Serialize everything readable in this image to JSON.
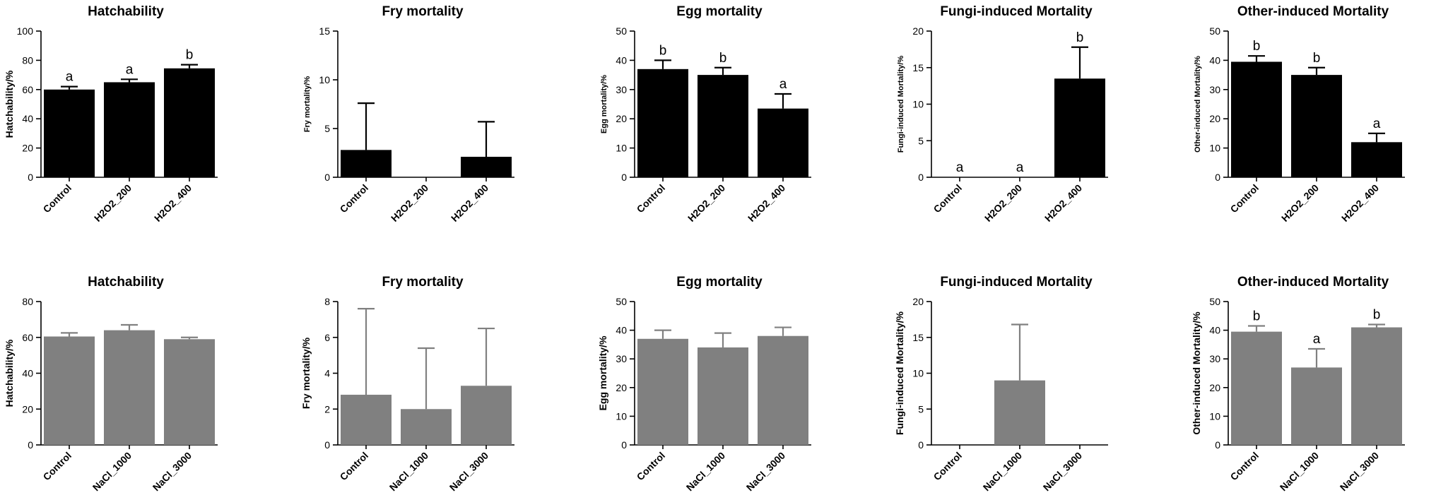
{
  "colors": {
    "row1_bar": "#000000",
    "row2_bar": "#808080",
    "axis": "#000000"
  },
  "chart_data": [
    {
      "type": "bar",
      "title": "Hatchability",
      "ylabel": "Hatchability/%",
      "ylim": [
        0,
        100
      ],
      "yticks": [
        0,
        20,
        40,
        60,
        80,
        100
      ],
      "categories": [
        "Control",
        "H2O2_200",
        "H2O2_400"
      ],
      "values": [
        60,
        65,
        74.5
      ],
      "errors": [
        2,
        2,
        2.5
      ],
      "letters": [
        "a",
        "a",
        "b"
      ],
      "color_key": "row1_bar"
    },
    {
      "type": "bar",
      "title": "Fry mortality",
      "ylabel": "Fry mortality/%",
      "ylim": [
        0,
        15
      ],
      "yticks": [
        0,
        5,
        10,
        15
      ],
      "categories": [
        "Control",
        "H2O2_200",
        "H2O2_400"
      ],
      "values": [
        2.8,
        0,
        2.1
      ],
      "errors": [
        4.8,
        0,
        3.6
      ],
      "letters": [
        "",
        "",
        ""
      ],
      "color_key": "row1_bar"
    },
    {
      "type": "bar",
      "title": "Egg mortality",
      "ylabel": "Egg mortality/%",
      "ylim": [
        0,
        50
      ],
      "yticks": [
        0,
        10,
        20,
        30,
        40,
        50
      ],
      "categories": [
        "Control",
        "H2O2_200",
        "H2O2_400"
      ],
      "values": [
        37,
        35,
        23.5
      ],
      "errors": [
        3,
        2.5,
        5
      ],
      "letters": [
        "b",
        "b",
        "a"
      ],
      "color_key": "row1_bar"
    },
    {
      "type": "bar",
      "title": "Fungi-induced Mortality",
      "ylabel": "Fungi-induced Mortality/%",
      "ylim": [
        0,
        20
      ],
      "yticks": [
        0,
        5,
        10,
        15,
        20
      ],
      "categories": [
        "Control",
        "H2O2_200",
        "H2O2_400"
      ],
      "values": [
        0,
        0,
        13.5
      ],
      "errors": [
        0,
        0,
        4.3
      ],
      "letters": [
        "a",
        "a",
        "b"
      ],
      "color_key": "row1_bar"
    },
    {
      "type": "bar",
      "title": "Other-induced Mortality",
      "ylabel": "Other-induced Mortality/%",
      "ylim": [
        0,
        50
      ],
      "yticks": [
        0,
        10,
        20,
        30,
        40,
        50
      ],
      "categories": [
        "Control",
        "H2O2_200",
        "H2O2_400"
      ],
      "values": [
        39.5,
        35,
        12
      ],
      "errors": [
        2,
        2.5,
        3
      ],
      "letters": [
        "b",
        "b",
        "a"
      ],
      "color_key": "row1_bar"
    },
    {
      "type": "bar",
      "title": "Hatchability",
      "ylabel": "Hatchability/%",
      "ylim": [
        0,
        80
      ],
      "yticks": [
        0,
        20,
        40,
        60,
        80
      ],
      "categories": [
        "Control",
        "NaCl_1000",
        "NaCl_3000"
      ],
      "values": [
        60.5,
        64,
        59
      ],
      "errors": [
        2,
        3,
        1
      ],
      "letters": [
        "",
        "",
        ""
      ],
      "color_key": "row2_bar"
    },
    {
      "type": "bar",
      "title": "Fry mortality",
      "ylabel": "Fry mortality/%",
      "ylim": [
        0,
        8
      ],
      "yticks": [
        0,
        2,
        4,
        6,
        8
      ],
      "categories": [
        "Control",
        "NaCl_1000",
        "NaCl_3000"
      ],
      "values": [
        2.8,
        2,
        3.3
      ],
      "errors": [
        4.8,
        3.4,
        3.2
      ],
      "letters": [
        "",
        "",
        ""
      ],
      "color_key": "row2_bar"
    },
    {
      "type": "bar",
      "title": "Egg mortality",
      "ylabel": "Egg mortality/%",
      "ylim": [
        0,
        50
      ],
      "yticks": [
        0,
        10,
        20,
        30,
        40,
        50
      ],
      "categories": [
        "Control",
        "NaCl_1000",
        "NaCl_3000"
      ],
      "values": [
        37,
        34,
        38
      ],
      "errors": [
        3,
        5,
        3
      ],
      "letters": [
        "",
        "",
        ""
      ],
      "color_key": "row2_bar"
    },
    {
      "type": "bar",
      "title": "Fungi-induced Mortality",
      "ylabel": "Fungi-induced Mortality/%",
      "ylim": [
        0,
        20
      ],
      "yticks": [
        0,
        5,
        10,
        15,
        20
      ],
      "categories": [
        "Control",
        "NaCl_1000",
        "NaCl_3000"
      ],
      "values": [
        0,
        9,
        0
      ],
      "errors": [
        0,
        7.8,
        0
      ],
      "letters": [
        "",
        "",
        ""
      ],
      "color_key": "row2_bar"
    },
    {
      "type": "bar",
      "title": "Other-induced Mortality",
      "ylabel": "Other-induced Mortality/%",
      "ylim": [
        0,
        50
      ],
      "yticks": [
        0,
        10,
        20,
        30,
        40,
        50
      ],
      "categories": [
        "Control",
        "NaCl_1000",
        "NaCl_3000"
      ],
      "values": [
        39.5,
        27,
        41
      ],
      "errors": [
        2,
        6.5,
        1
      ],
      "letters": [
        "b",
        "a",
        "b"
      ],
      "color_key": "row2_bar"
    }
  ]
}
